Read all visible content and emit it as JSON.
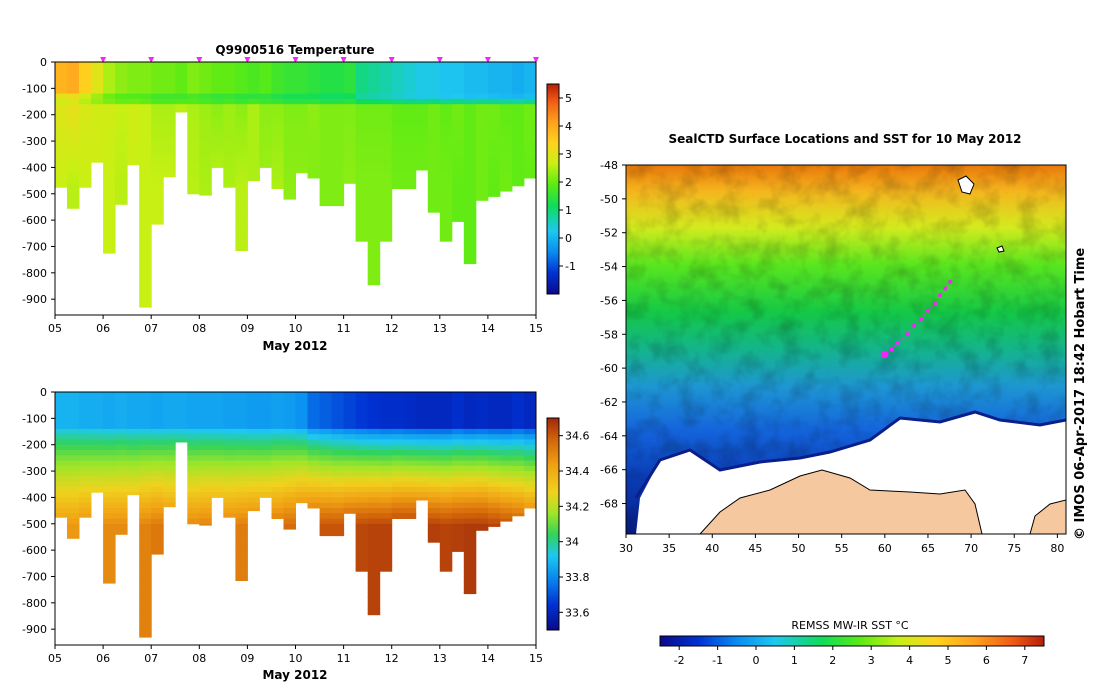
{
  "colors": {
    "temp_scale": [
      "#0a0a8a",
      "#0032d2",
      "#0a8cf0",
      "#1ec8f0",
      "#0fdc5a",
      "#5aeb14",
      "#c8f014",
      "#ffd21e",
      "#ffa01e",
      "#f05a14",
      "#b41e0a"
    ],
    "sal_scale": [
      "#0a0a8a",
      "#0032d2",
      "#0a8cf0",
      "#1ec8f0",
      "#32d25a",
      "#a0e628",
      "#f0d21e",
      "#f0a014",
      "#d2640a",
      "#a0280a"
    ],
    "land": "#f5c8a0",
    "ice": "#ffffff",
    "track": "#ff1eff"
  },
  "chart_data": [
    {
      "id": "temperature-section",
      "type": "heatmap",
      "title": "Q9900516  Temperature",
      "xlabel": "May 2012",
      "ylabel": "",
      "x_ticks": [
        "05",
        "06",
        "07",
        "08",
        "09",
        "10",
        "11",
        "12",
        "13",
        "14",
        "15"
      ],
      "y_ticks": [
        "0",
        "-100",
        "-200",
        "-300",
        "-400",
        "-500",
        "-600",
        "-700",
        "-800",
        "-900"
      ],
      "xlim": [
        5,
        15
      ],
      "ylim": [
        -960,
        0
      ],
      "colorbar_ticks": [
        "5",
        "4",
        "3",
        "2",
        "1",
        "0",
        "-1"
      ],
      "colorbar_range": [
        -2,
        5.5
      ],
      "profile_days": [
        5.0,
        5.25,
        5.5,
        5.75,
        6.0,
        6.25,
        6.5,
        6.75,
        7.0,
        7.25,
        7.5,
        7.75,
        8.0,
        8.25,
        8.5,
        8.75,
        9.0,
        9.25,
        9.5,
        9.75,
        10.0,
        10.25,
        10.5,
        10.75,
        11.0,
        11.25,
        11.5,
        11.75,
        12.0,
        12.25,
        12.5,
        12.75,
        13.0,
        13.25,
        13.5,
        13.75,
        14.0,
        14.25,
        14.5,
        14.75
      ],
      "profile_max_depth": [
        475,
        555,
        475,
        380,
        725,
        540,
        390,
        930,
        615,
        435,
        190,
        500,
        505,
        400,
        475,
        715,
        450,
        400,
        480,
        520,
        420,
        440,
        545,
        545,
        460,
        680,
        845,
        680,
        480,
        480,
        410,
        570,
        680,
        605,
        765,
        525,
        510,
        490,
        470,
        440
      ],
      "marker_days": [
        6,
        7,
        8,
        9,
        10,
        11,
        12,
        13,
        14,
        15
      ],
      "surface_temp": [
        3.7,
        3.8,
        3.3,
        2.8,
        2.3,
        2.1,
        2.0,
        2.0,
        1.9,
        1.9,
        1.8,
        2.0,
        1.9,
        1.8,
        1.8,
        1.7,
        1.6,
        1.7,
        1.5,
        1.4,
        1.4,
        1.3,
        1.2,
        1.2,
        1.3,
        0.8,
        0.7,
        0.6,
        0.5,
        0.4,
        0.3,
        0.3,
        0.2,
        0.2,
        0.1,
        0.1,
        0.0,
        0.0,
        -0.1,
        0.0
      ],
      "mid_temp": [
        2.8,
        2.9,
        2.7,
        2.6,
        2.6,
        2.5,
        2.6,
        2.5,
        2.3,
        2.3,
        2.4,
        2.3,
        2.2,
        2.1,
        2.2,
        2.1,
        2.3,
        2.1,
        2.1,
        2.0,
        2.0,
        2.1,
        2.0,
        2.0,
        2.0,
        1.9,
        1.9,
        1.9,
        1.8,
        1.8,
        1.8,
        1.9,
        1.8,
        1.9,
        1.8,
        1.9,
        1.9,
        1.8,
        1.8,
        1.9
      ],
      "deep_temp": [
        2.5,
        2.4,
        2.5,
        2.6,
        2.5,
        2.4,
        2.5,
        2.5,
        2.5,
        2.5,
        2.4,
        2.4,
        2.3,
        2.4,
        2.3,
        2.4,
        2.3,
        2.2,
        2.3,
        2.1,
        2.1,
        2.0,
        2.0,
        2.0,
        2.1,
        2.0,
        2.0,
        2.0,
        1.9,
        1.9,
        1.9,
        1.9,
        1.9,
        1.8,
        1.8,
        1.9,
        1.8,
        1.9,
        1.8,
        1.8
      ]
    },
    {
      "id": "salinity-section",
      "type": "heatmap",
      "title": "",
      "xlabel": "May 2012",
      "ylabel": "",
      "x_ticks": [
        "05",
        "06",
        "07",
        "08",
        "09",
        "10",
        "11",
        "12",
        "13",
        "14",
        "15"
      ],
      "y_ticks": [
        "0",
        "-100",
        "-200",
        "-300",
        "-400",
        "-500",
        "-600",
        "-700",
        "-800",
        "-900"
      ],
      "xlim": [
        5,
        15
      ],
      "ylim": [
        -960,
        0
      ],
      "colorbar_ticks": [
        "34.6",
        "34.4",
        "34.2",
        "34",
        "33.8",
        "33.6"
      ],
      "colorbar_range": [
        33.5,
        34.7
      ],
      "surface_sal": [
        33.85,
        33.85,
        33.84,
        33.84,
        33.83,
        33.84,
        33.83,
        33.83,
        33.82,
        33.83,
        33.83,
        33.82,
        33.82,
        33.82,
        33.81,
        33.81,
        33.8,
        33.8,
        33.81,
        33.8,
        33.78,
        33.72,
        33.7,
        33.68,
        33.66,
        33.64,
        33.63,
        33.62,
        33.62,
        33.61,
        33.6,
        33.6,
        33.6,
        33.62,
        33.6,
        33.61,
        33.6,
        33.6,
        33.62,
        33.6
      ],
      "deep_sal": [
        34.45,
        34.45,
        34.47,
        34.47,
        34.48,
        34.48,
        34.48,
        34.5,
        34.52,
        34.5,
        34.49,
        34.49,
        34.5,
        34.5,
        34.5,
        34.51,
        34.52,
        34.52,
        34.53,
        34.55,
        34.58,
        34.6,
        34.6,
        34.6,
        34.62,
        34.63,
        34.64,
        34.64,
        34.66,
        34.66,
        34.66,
        34.65,
        34.64,
        34.65,
        34.66,
        34.66,
        34.64,
        34.62,
        34.6,
        34.58
      ]
    },
    {
      "id": "sst-map",
      "type": "heatmap",
      "title": "SealCTD Surface Locations and SST for 10 May 2012",
      "x_ticks": [
        "30",
        "35",
        "40",
        "45",
        "50",
        "55",
        "60",
        "65",
        "70",
        "75",
        "80"
      ],
      "y_ticks": [
        "-48",
        "-50",
        "-52",
        "-54",
        "-56",
        "-58",
        "-60",
        "-62",
        "-64",
        "-66",
        "-68"
      ],
      "xlim": [
        30,
        81
      ],
      "ylim": [
        -69.8,
        -48
      ],
      "colorbar_label": "REMSS MW-IR SST °C",
      "colorbar_ticks": [
        "-2",
        "-1",
        "0",
        "1",
        "2",
        "3",
        "4",
        "5",
        "6",
        "7"
      ],
      "colorbar_range": [
        -2.5,
        7.5
      ],
      "surface_locations": [
        {
          "lon": 60.0,
          "lat": -59.2
        },
        {
          "lon": 60.8,
          "lat": -58.9
        },
        {
          "lon": 61.5,
          "lat": -58.5
        },
        {
          "lon": 62.6,
          "lat": -58.0
        },
        {
          "lon": 63.4,
          "lat": -57.5
        },
        {
          "lon": 64.2,
          "lat": -57.1
        },
        {
          "lon": 65.0,
          "lat": -56.6
        },
        {
          "lon": 65.8,
          "lat": -56.2
        },
        {
          "lon": 66.4,
          "lat": -55.7
        },
        {
          "lon": 67.0,
          "lat": -55.3
        },
        {
          "lon": 67.6,
          "lat": -54.9
        }
      ],
      "credit": "© IMOS 06-Apr-2017 18:42 Hobart Time"
    }
  ]
}
